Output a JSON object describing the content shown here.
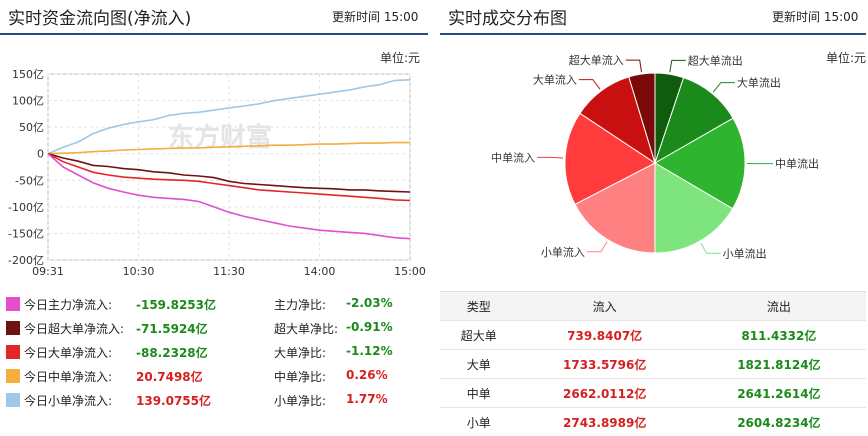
{
  "left": {
    "title": "实时资金流向图(净流入)",
    "update_label": "更新时间",
    "update_time": "15:00",
    "unit": "单位:元"
  },
  "right": {
    "title": "实时成交分布图",
    "update_label": "更新时间",
    "update_time": "15:00",
    "unit": "单位:元"
  },
  "watermark": "东方财富",
  "colors": {
    "main": "#e34fce",
    "super": "#6e1313",
    "large": "#e02727",
    "medium": "#f5ae3d",
    "small": "#9fc8e8",
    "in_text": "#d62020",
    "out_text": "#1a8a1a",
    "rule": "#2b4a8a"
  },
  "legend": [
    {
      "label": "今日主力净流入:",
      "value": "-159.8253亿",
      "ratio_label": "主力净比:",
      "ratio": "-2.03%",
      "value_color": "green",
      "ratio_color": "green",
      "swatch": "#e34fce"
    },
    {
      "label": "今日超大单净流入:",
      "value": "-71.5924亿",
      "ratio_label": "超大单净比:",
      "ratio": "-0.91%",
      "value_color": "green",
      "ratio_color": "green",
      "swatch": "#6e1313"
    },
    {
      "label": "今日大单净流入:",
      "value": "-88.2328亿",
      "ratio_label": "大单净比:",
      "ratio": "-1.12%",
      "value_color": "green",
      "ratio_color": "green",
      "swatch": "#e02727"
    },
    {
      "label": "今日中单净流入:",
      "value": "20.7498亿",
      "ratio_label": "中单净比:",
      "ratio": "0.26%",
      "value_color": "red",
      "ratio_color": "red",
      "swatch": "#f5ae3d"
    },
    {
      "label": "今日小单净流入:",
      "value": "139.0755亿",
      "ratio_label": "小单净比:",
      "ratio": "1.77%",
      "value_color": "red",
      "ratio_color": "red",
      "swatch": "#9fc8e8"
    }
  ],
  "table": {
    "headers": [
      "类型",
      "流入",
      "流出"
    ],
    "rows": [
      {
        "type": "超大单",
        "in": "739.8407亿",
        "out": "811.4332亿"
      },
      {
        "type": "大单",
        "in": "1733.5796亿",
        "out": "1821.8124亿"
      },
      {
        "type": "中单",
        "in": "2662.0112亿",
        "out": "2641.2614亿"
      },
      {
        "type": "小单",
        "in": "2743.8989亿",
        "out": "2604.8234亿"
      }
    ]
  },
  "chart_data": [
    {
      "type": "line",
      "ylim": [
        -200,
        150
      ],
      "ytick_labels": [
        "150亿",
        "100亿",
        "50亿",
        "0",
        "-50亿",
        "-100亿",
        "-150亿",
        "-200亿"
      ],
      "yticks": [
        150,
        100,
        50,
        0,
        -50,
        -100,
        -150,
        -200
      ],
      "xtick_labels": [
        "09:31",
        "10:30",
        "11:30",
        "14:00",
        "15:00"
      ],
      "x": [
        0,
        10,
        20,
        30,
        40,
        50,
        60,
        70,
        80,
        90,
        100,
        110,
        120,
        130,
        140,
        150,
        160,
        170,
        180,
        190,
        200,
        210,
        220,
        230,
        240
      ],
      "series": [
        {
          "key": "small",
          "color": "#9fc8e8",
          "values": [
            0,
            12,
            22,
            38,
            48,
            55,
            60,
            64,
            72,
            76,
            78,
            82,
            86,
            90,
            94,
            100,
            104,
            108,
            112,
            116,
            120,
            126,
            130,
            138,
            139
          ]
        },
        {
          "key": "medium",
          "color": "#f5ae3d",
          "values": [
            0,
            1,
            2,
            4,
            5,
            7,
            8,
            9,
            10,
            11,
            11,
            12,
            13,
            14,
            15,
            16,
            16,
            17,
            18,
            18,
            19,
            20,
            20,
            21,
            21
          ]
        },
        {
          "key": "super",
          "color": "#6e1313",
          "values": [
            0,
            -8,
            -14,
            -22,
            -24,
            -28,
            -30,
            -34,
            -36,
            -40,
            -42,
            -45,
            -52,
            -56,
            -58,
            -60,
            -62,
            -64,
            -65,
            -66,
            -68,
            -68,
            -70,
            -71,
            -72
          ]
        },
        {
          "key": "large",
          "color": "#e02727",
          "values": [
            0,
            -15,
            -25,
            -35,
            -40,
            -44,
            -46,
            -48,
            -49,
            -50,
            -52,
            -56,
            -60,
            -64,
            -68,
            -70,
            -72,
            -74,
            -76,
            -78,
            -80,
            -82,
            -84,
            -87,
            -88
          ]
        },
        {
          "key": "main",
          "color": "#e34fce",
          "values": [
            0,
            -25,
            -40,
            -55,
            -65,
            -72,
            -78,
            -82,
            -84,
            -86,
            -90,
            -100,
            -110,
            -118,
            -124,
            -130,
            -136,
            -140,
            -144,
            -146,
            -148,
            -150,
            -154,
            -158,
            -160
          ]
        }
      ]
    },
    {
      "type": "pie",
      "slices": [
        {
          "label": "超大单流出",
          "value": 811.4332,
          "color": "#0f5c0f",
          "side": "right"
        },
        {
          "label": "大单流出",
          "value": 1821.8124,
          "color": "#1a8a1a",
          "side": "right"
        },
        {
          "label": "中单流出",
          "value": 2641.2614,
          "color": "#2fb42f",
          "side": "right"
        },
        {
          "label": "小单流出",
          "value": 2604.8234,
          "color": "#7ee47e",
          "side": "right"
        },
        {
          "label": "小单流入",
          "value": 2743.8989,
          "color": "#ff8080",
          "side": "left"
        },
        {
          "label": "中单流入",
          "value": 2662.0112,
          "color": "#ff3b3b",
          "side": "left"
        },
        {
          "label": "大单流入",
          "value": 1733.5796,
          "color": "#c81010",
          "side": "left"
        },
        {
          "label": "超大单流入",
          "value": 739.8407,
          "color": "#7a0a0a",
          "side": "left"
        }
      ]
    }
  ]
}
